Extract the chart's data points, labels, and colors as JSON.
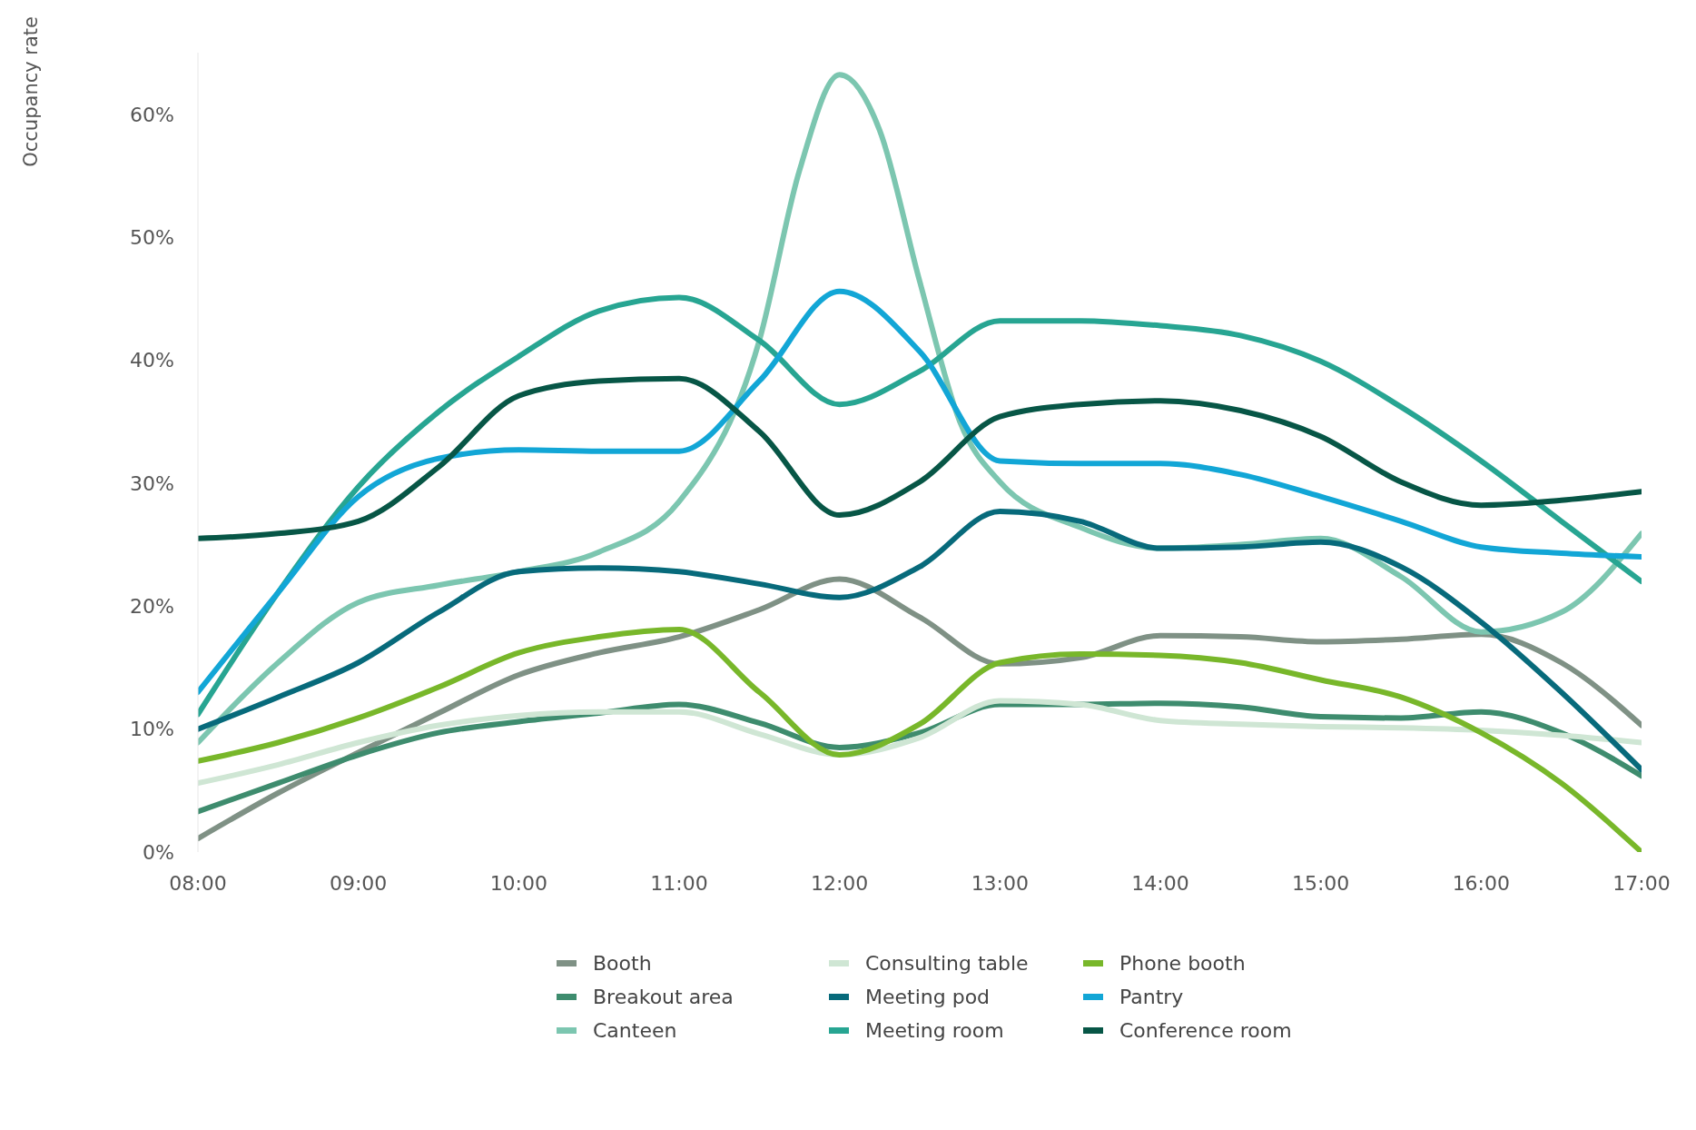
{
  "chart_data": {
    "type": "line",
    "ylabel": "Occupancy rate",
    "x": [
      8,
      8.5,
      9,
      9.5,
      10,
      10.5,
      11,
      11.5,
      12,
      12.5,
      13,
      13.5,
      14,
      14.5,
      15,
      15.5,
      16,
      16.5,
      17
    ],
    "xlim": [
      8,
      17
    ],
    "xticks": [
      {
        "value": 8,
        "label": "08:00"
      },
      {
        "value": 9,
        "label": "09:00"
      },
      {
        "value": 10,
        "label": "10:00"
      },
      {
        "value": 11,
        "label": "11:00"
      },
      {
        "value": 12,
        "label": "12:00"
      },
      {
        "value": 13,
        "label": "13:00"
      },
      {
        "value": 14,
        "label": "14:00"
      },
      {
        "value": 15,
        "label": "15:00"
      },
      {
        "value": 16,
        "label": "16:00"
      },
      {
        "value": 17,
        "label": "17:00"
      }
    ],
    "ylim": [
      0,
      65
    ],
    "yticks": [
      {
        "value": 0,
        "label": "0%"
      },
      {
        "value": 10,
        "label": "10%"
      },
      {
        "value": 20,
        "label": "20%"
      },
      {
        "value": 30,
        "label": "30%"
      },
      {
        "value": 40,
        "label": "40%"
      },
      {
        "value": 50,
        "label": "50%"
      },
      {
        "value": 60,
        "label": "60%"
      }
    ],
    "grid": false,
    "legend": "bottom",
    "marker": "none",
    "line_style": "solid",
    "series": [
      {
        "name": "Booth",
        "color": "#7f9185",
        "values": [
          1.1,
          4.8,
          8.1,
          11.3,
          14.4,
          16.2,
          17.5,
          19.7,
          22.2,
          19.1,
          15.3,
          15.8,
          17.6,
          17.5,
          17.1,
          17.3,
          17.7,
          15.4,
          10.3
        ]
      },
      {
        "name": "Breakout area",
        "color": "#3e8c6e",
        "values": [
          3.3,
          5.6,
          7.9,
          9.7,
          10.6,
          11.3,
          12.0,
          10.5,
          8.5,
          9.7,
          12.0,
          12.0,
          12.1,
          11.8,
          11.0,
          10.9,
          11.4,
          9.7,
          6.2
        ]
      },
      {
        "name": "Canteen",
        "color": "#7cc6b0",
        "x": [
          8,
          8.5,
          9,
          9.5,
          10,
          10.5,
          11,
          11.5,
          11.75,
          12,
          12.25,
          12.5,
          12.75,
          13,
          13.5,
          14,
          14.5,
          15,
          15.5,
          16,
          16.5,
          17
        ],
        "values": [
          8.9,
          15.4,
          20.3,
          21.7,
          22.8,
          24.4,
          28.5,
          41.6,
          55.4,
          63.2,
          58.7,
          46.4,
          35.0,
          30.1,
          26.4,
          24.7,
          25.0,
          25.5,
          22.4,
          17.9,
          19.5,
          25.9
        ]
      },
      {
        "name": "Consulting table",
        "color": "#cfe6d4",
        "values": [
          5.6,
          7.1,
          8.9,
          10.3,
          11.1,
          11.4,
          11.4,
          9.6,
          7.9,
          9.3,
          12.3,
          12.0,
          10.7,
          10.4,
          10.2,
          10.1,
          9.9,
          9.5,
          8.9
        ]
      },
      {
        "name": "Meeting pod",
        "color": "#076a7b",
        "values": [
          10.0,
          12.6,
          15.4,
          19.5,
          22.8,
          23.1,
          22.8,
          21.8,
          20.7,
          23.2,
          27.7,
          26.9,
          24.7,
          24.8,
          25.2,
          23.2,
          18.7,
          13.0,
          6.7
        ]
      },
      {
        "name": "Meeting room",
        "color": "#27a592",
        "values": [
          11.2,
          21.1,
          29.7,
          35.8,
          40.3,
          44.0,
          45.1,
          41.6,
          36.4,
          39.1,
          43.2,
          43.2,
          42.8,
          42.0,
          39.9,
          36.2,
          31.8,
          26.9,
          22.0
        ]
      },
      {
        "name": "Phone booth",
        "color": "#78b72a",
        "values": [
          7.4,
          8.9,
          10.9,
          13.4,
          16.2,
          17.5,
          18.1,
          13.0,
          7.9,
          10.4,
          15.4,
          16.1,
          16.0,
          15.4,
          14.0,
          12.6,
          9.7,
          5.6,
          0
        ]
      },
      {
        "name": "Pantry",
        "color": "#12a6d6",
        "values": [
          13.0,
          21.1,
          28.9,
          32.0,
          32.7,
          32.6,
          32.6,
          38.3,
          45.6,
          40.7,
          31.8,
          31.6,
          31.6,
          30.7,
          28.9,
          26.9,
          24.8,
          24.3,
          24.0
        ]
      },
      {
        "name": "Conference room",
        "color": "#075646",
        "values": [
          25.5,
          25.9,
          26.9,
          31.3,
          37.1,
          38.3,
          38.5,
          34.2,
          27.4,
          30.1,
          35.4,
          36.4,
          36.7,
          35.9,
          33.8,
          30.1,
          28.2,
          28.6,
          29.3
        ]
      }
    ]
  }
}
